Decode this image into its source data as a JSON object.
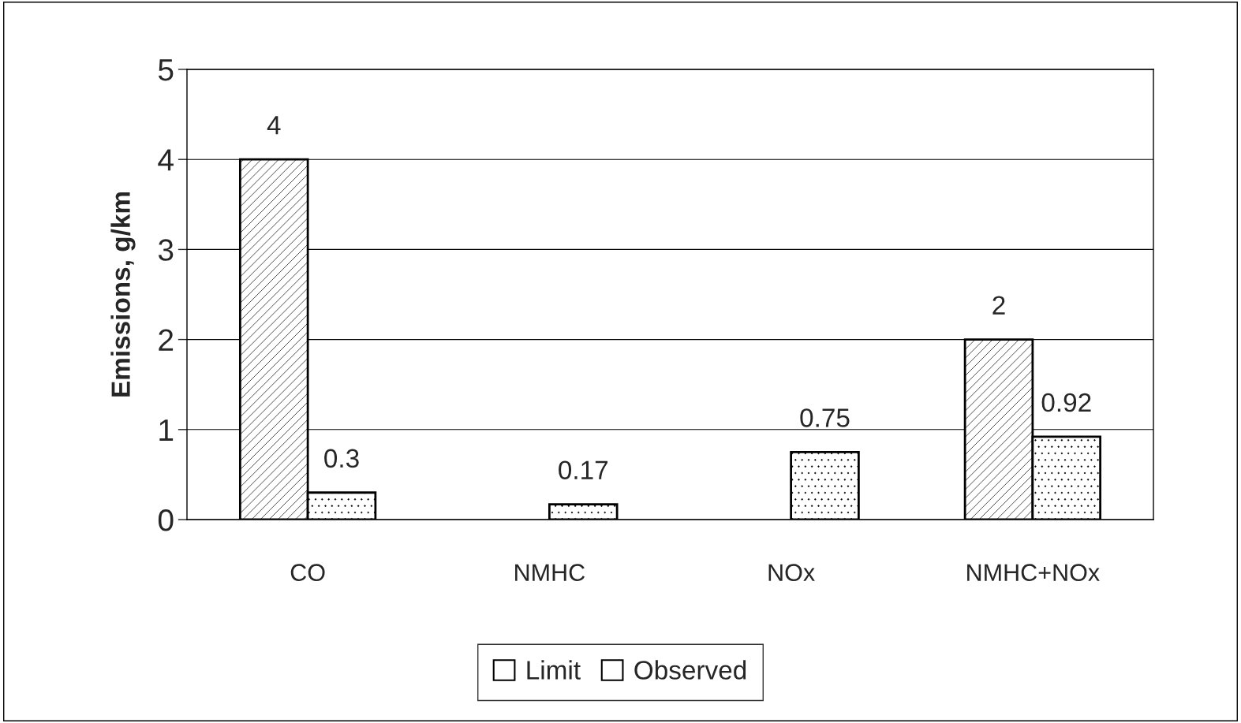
{
  "chart_data": {
    "type": "bar",
    "ylabel": "Emissions, g/km",
    "categories": [
      "CO",
      "NMHC",
      "NOx",
      "NMHC+NOx"
    ],
    "series": [
      {
        "name": "Limit",
        "color": "#ffffff",
        "values": [
          4,
          null,
          null,
          2
        ]
      },
      {
        "name": "Observed",
        "color": "#ffffff",
        "values": [
          0.3,
          0.17,
          0.75,
          0.92
        ]
      }
    ],
    "ylim": [
      0,
      5
    ],
    "yticks": [
      0,
      1,
      2,
      3,
      4,
      5
    ],
    "grid": "y",
    "legend": "bottom",
    "data_labels": true
  }
}
